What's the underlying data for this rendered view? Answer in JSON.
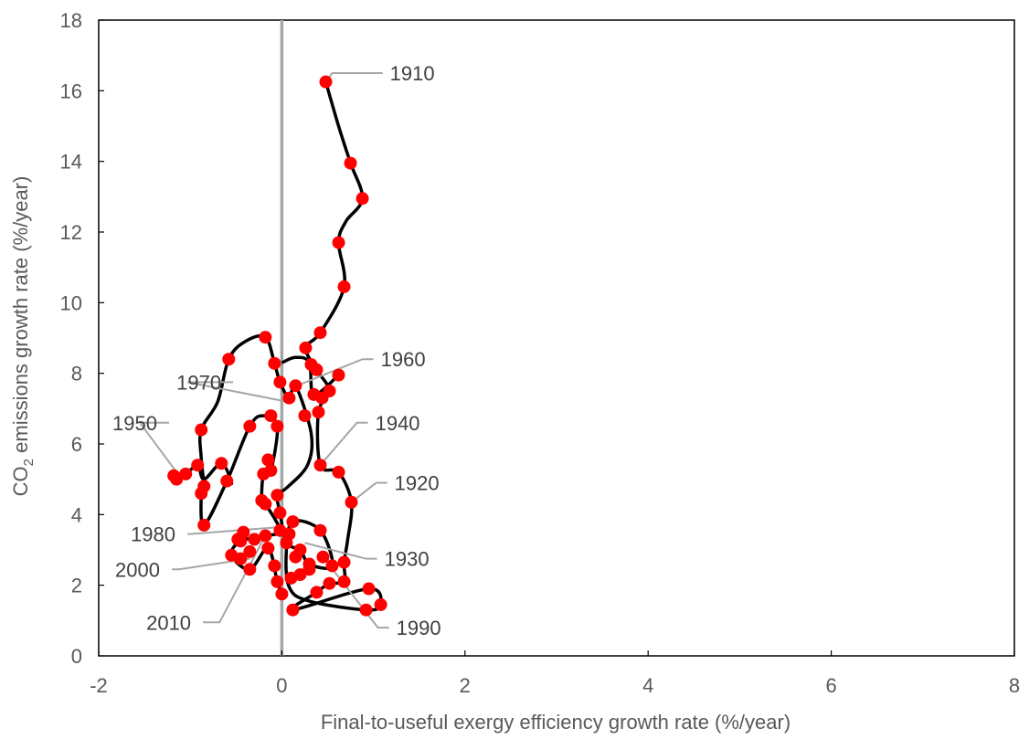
{
  "chart_data": {
    "type": "scatter",
    "xlabel": "Final-to-useful exergy efficiency growth rate (%/year)",
    "ylabel": {
      "prefix": "CO",
      "subscript": "2",
      "suffix": " emissions growth rate (%/year)"
    },
    "xlim": [
      -2,
      8
    ],
    "ylim": [
      0,
      18
    ],
    "xticks": [
      "-2",
      "0",
      "2",
      "4",
      "6",
      "8"
    ],
    "yticks": [
      "0",
      "2",
      "4",
      "6",
      "8",
      "10",
      "12",
      "14",
      "16",
      "18"
    ],
    "grid": false,
    "legend": "none",
    "reference_line": {
      "x": 0,
      "color": "#a6a6a6"
    },
    "colors": {
      "marker": "#ff0000",
      "line": "#000000",
      "leader": "#a6a6a6"
    },
    "series": [
      {
        "points": [
          [
            0.48,
            16.25
          ],
          [
            0.75,
            13.95
          ],
          [
            0.88,
            12.95
          ],
          [
            0.62,
            11.7
          ],
          [
            0.68,
            10.45
          ],
          [
            0.42,
            9.15
          ],
          [
            0.26,
            8.72
          ],
          [
            0.32,
            8.25
          ],
          [
            0.38,
            8.1
          ],
          [
            0.52,
            7.5
          ],
          [
            0.44,
            7.3
          ],
          [
            0.4,
            6.9
          ],
          [
            0.42,
            5.4
          ],
          [
            0.62,
            5.2
          ],
          [
            0.76,
            4.35
          ],
          [
            0.68,
            2.65
          ],
          [
            0.68,
            2.1
          ],
          [
            0.52,
            2.05
          ],
          [
            0.38,
            1.8
          ],
          [
            0.12,
            1.3
          ],
          [
            0.95,
            1.9
          ],
          [
            1.08,
            1.45
          ],
          [
            0.92,
            1.3
          ],
          [
            0.42,
            3.55
          ],
          [
            0.12,
            3.8
          ],
          [
            0.05,
            3.2
          ],
          [
            0.15,
            2.8
          ],
          [
            0.2,
            3.0
          ],
          [
            0.3,
            2.6
          ],
          [
            0.45,
            2.8
          ],
          [
            0.55,
            2.55
          ],
          [
            0.1,
            2.2
          ],
          [
            -0.08,
            2.55
          ],
          [
            -0.05,
            2.1
          ],
          [
            0.0,
            1.75
          ],
          [
            -0.02,
            4.05
          ],
          [
            -0.05,
            4.55
          ],
          [
            -0.12,
            5.25
          ],
          [
            -0.15,
            5.55
          ],
          [
            -0.2,
            5.15
          ],
          [
            -0.18,
            4.3
          ],
          [
            -0.22,
            4.4
          ],
          [
            -0.35,
            6.5
          ],
          [
            -0.58,
            8.4
          ],
          [
            -0.18,
            9.02
          ],
          [
            -0.08,
            8.28
          ],
          [
            -0.02,
            7.75
          ],
          [
            -0.12,
            6.8
          ],
          [
            -0.05,
            6.5
          ],
          [
            0.08,
            7.3
          ],
          [
            0.15,
            7.65
          ],
          [
            0.25,
            6.8
          ],
          [
            0.62,
            7.95
          ],
          [
            0.35,
            7.4
          ],
          [
            -0.6,
            4.95
          ],
          [
            -0.66,
            5.45
          ],
          [
            -0.88,
            6.4
          ],
          [
            -0.85,
            4.8
          ],
          [
            -0.88,
            4.6
          ],
          [
            -0.85,
            3.7
          ],
          [
            -0.92,
            5.4
          ],
          [
            -1.05,
            5.15
          ],
          [
            -1.18,
            5.1
          ],
          [
            -1.15,
            5.0
          ],
          [
            -0.45,
            3.25
          ],
          [
            -0.42,
            3.5
          ],
          [
            -0.48,
            3.3
          ],
          [
            -0.3,
            3.3
          ],
          [
            -0.15,
            3.05
          ],
          [
            -0.35,
            2.95
          ],
          [
            -0.55,
            2.85
          ],
          [
            -0.45,
            2.75
          ],
          [
            -0.35,
            2.45
          ],
          [
            -0.18,
            3.4
          ],
          [
            -0.02,
            3.55
          ],
          [
            0.08,
            3.45
          ],
          [
            0.3,
            2.45
          ],
          [
            0.2,
            2.3
          ]
        ],
        "curve": [
          [
            0.48,
            16.25
          ],
          [
            0.62,
            15.0
          ],
          [
            0.75,
            13.95
          ],
          [
            0.88,
            12.95
          ],
          [
            0.7,
            12.3
          ],
          [
            0.62,
            11.7
          ],
          [
            0.68,
            10.45
          ],
          [
            0.42,
            9.15
          ],
          [
            0.26,
            8.72
          ],
          [
            0.38,
            8.1
          ],
          [
            0.52,
            7.5
          ],
          [
            0.4,
            6.9
          ],
          [
            0.42,
            5.4
          ],
          [
            0.62,
            5.2
          ],
          [
            0.76,
            4.35
          ],
          [
            0.72,
            3.3
          ],
          [
            0.68,
            2.65
          ],
          [
            0.68,
            2.1
          ],
          [
            0.52,
            2.05
          ],
          [
            0.38,
            1.8
          ],
          [
            0.12,
            1.3
          ],
          [
            0.95,
            1.9
          ],
          [
            1.08,
            1.45
          ],
          [
            0.92,
            1.3
          ],
          [
            0.3,
            1.55
          ],
          [
            0.08,
            1.95
          ],
          [
            0.05,
            3.0
          ],
          [
            0.12,
            3.8
          ],
          [
            0.42,
            3.55
          ],
          [
            0.55,
            2.55
          ],
          [
            0.3,
            2.6
          ],
          [
            0.2,
            3.0
          ],
          [
            0.05,
            3.2
          ],
          [
            -0.02,
            4.05
          ],
          [
            -0.05,
            4.55
          ],
          [
            0.05,
            4.75
          ],
          [
            0.28,
            5.4
          ],
          [
            0.32,
            6.3
          ],
          [
            0.15,
            7.65
          ],
          [
            0.08,
            7.3
          ],
          [
            -0.02,
            7.75
          ],
          [
            -0.08,
            8.28
          ],
          [
            -0.18,
            9.02
          ],
          [
            -0.4,
            8.9
          ],
          [
            -0.58,
            8.4
          ],
          [
            -0.7,
            7.2
          ],
          [
            -0.88,
            6.4
          ],
          [
            -0.88,
            5.6
          ],
          [
            -0.85,
            4.8
          ],
          [
            -0.88,
            4.6
          ],
          [
            -0.85,
            3.7
          ],
          [
            -0.6,
            4.95
          ],
          [
            -0.35,
            6.5
          ],
          [
            -0.2,
            6.8
          ],
          [
            -0.05,
            6.5
          ],
          [
            -0.12,
            5.25
          ],
          [
            -0.2,
            5.15
          ],
          [
            -0.22,
            4.4
          ],
          [
            -0.18,
            4.3
          ],
          [
            -0.02,
            3.55
          ],
          [
            -0.18,
            3.4
          ],
          [
            -0.45,
            3.25
          ],
          [
            -0.55,
            2.85
          ],
          [
            -0.35,
            2.45
          ],
          [
            -0.15,
            3.05
          ],
          [
            -0.05,
            2.1
          ],
          [
            0.0,
            1.75
          ]
        ],
        "curve2": [
          [
            -1.18,
            5.1
          ],
          [
            -1.05,
            5.15
          ],
          [
            -0.92,
            5.4
          ],
          [
            -0.85,
            5.0
          ],
          [
            -0.66,
            5.45
          ],
          [
            -0.55,
            4.9
          ],
          [
            -0.6,
            4.95
          ]
        ],
        "curve3": [
          [
            0.0,
            8.3
          ],
          [
            0.15,
            8.45
          ],
          [
            0.3,
            8.3
          ],
          [
            0.35,
            7.4
          ],
          [
            0.62,
            7.95
          ]
        ]
      }
    ],
    "annotations": [
      {
        "label": "1910",
        "point": [
          0.48,
          16.25
        ],
        "text_at": [
          1.18,
          16.5
        ],
        "elbow": [
          0.55,
          16.5
        ]
      },
      {
        "label": "1960",
        "point": [
          0.12,
          7.6
        ],
        "text_at": [
          1.08,
          8.4
        ],
        "elbow": [
          0.88,
          8.4
        ]
      },
      {
        "label": "1970",
        "point": [
          0.05,
          7.2
        ],
        "text_at": [
          -1.15,
          7.75
        ],
        "elbow": [
          -1.03,
          7.75
        ]
      },
      {
        "label": "1940",
        "point": [
          0.42,
          5.4
        ],
        "text_at": [
          1.02,
          6.6
        ],
        "elbow": [
          0.82,
          6.6
        ]
      },
      {
        "label": "1950",
        "point": [
          -1.12,
          5.1
        ],
        "text_at": [
          -1.85,
          6.6
        ],
        "elbow": [
          -1.55,
          6.6
        ]
      },
      {
        "label": "1920",
        "point": [
          0.76,
          4.35
        ],
        "text_at": [
          1.23,
          4.9
        ],
        "elbow": [
          1.03,
          4.9
        ]
      },
      {
        "label": "1980",
        "point": [
          0.0,
          3.65
        ],
        "text_at": [
          -1.65,
          3.45
        ],
        "elbow": [
          -1.0,
          3.45
        ]
      },
      {
        "label": "1930",
        "point": [
          0.25,
          3.2
        ],
        "text_at": [
          1.12,
          2.75
        ],
        "elbow": [
          0.92,
          2.75
        ]
      },
      {
        "label": "2000",
        "point": [
          -0.35,
          2.75
        ],
        "text_at": [
          -1.82,
          2.45
        ],
        "elbow": [
          -1.12,
          2.45
        ]
      },
      {
        "label": "1990",
        "point": [
          0.45,
          2.8
        ],
        "text_at": [
          1.25,
          0.8
        ],
        "elbow": [
          1.05,
          0.8
        ]
      },
      {
        "label": "2010",
        "point": [
          -0.18,
          3.4
        ],
        "text_at": [
          -1.48,
          0.95
        ],
        "elbow": [
          -0.68,
          0.95
        ]
      }
    ]
  }
}
